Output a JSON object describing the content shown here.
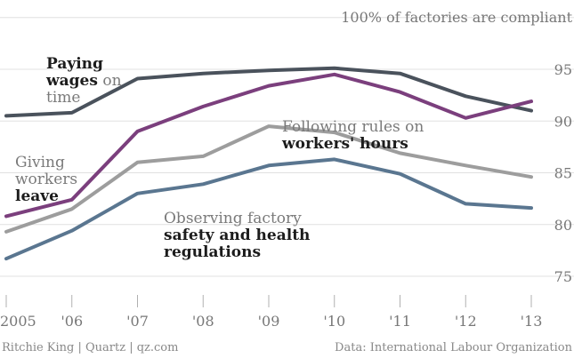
{
  "chart_data": {
    "type": "line",
    "title": "100% of factories are compliant",
    "x": [
      "2005",
      "'06",
      "'07",
      "'08",
      "'09",
      "'10",
      "'11",
      "'12",
      "'13"
    ],
    "y_ticks": [
      "95",
      "90",
      "85",
      "80",
      "75"
    ],
    "ylim": [
      74,
      100
    ],
    "series": [
      {
        "name": "Paying wages on time",
        "label_parts": [
          [
            {
              "t": "Paying",
              "b": true
            }
          ],
          [
            {
              "t": "wages",
              "b": true
            },
            {
              "t": " on",
              "b": false
            }
          ],
          [
            {
              "t": "time",
              "b": false
            }
          ]
        ],
        "color": "#4a525c",
        "values": [
          90.5,
          90.8,
          94.1,
          94.6,
          94.9,
          95.1,
          94.6,
          92.4,
          91.0
        ]
      },
      {
        "name": "Giving workers leave",
        "label_parts": [
          [
            {
              "t": "Giving",
              "b": false
            }
          ],
          [
            {
              "t": "workers",
              "b": false
            }
          ],
          [
            {
              "t": "leave",
              "b": true
            }
          ]
        ],
        "color": "#7b3f7d",
        "values": [
          80.8,
          82.4,
          89.0,
          91.4,
          93.4,
          94.5,
          92.8,
          90.3,
          91.9
        ]
      },
      {
        "name": "Following rules on workers' hours",
        "label_parts": [
          [
            {
              "t": "Following rules on",
              "b": false
            }
          ],
          [
            {
              "t": "workers' hours",
              "b": true
            }
          ]
        ],
        "color": "#9d9d9d",
        "values": [
          79.3,
          81.5,
          86.0,
          86.6,
          89.5,
          88.9,
          86.9,
          85.7,
          84.6
        ]
      },
      {
        "name": "Observing factory safety and health regulations",
        "label_parts": [
          [
            {
              "t": "Observing factory",
              "b": false
            }
          ],
          [
            {
              "t": "safety and health",
              "b": true
            }
          ],
          [
            {
              "t": "regulations",
              "b": true
            }
          ]
        ],
        "color": "#5a7690",
        "values": [
          76.7,
          79.4,
          83.0,
          83.9,
          85.7,
          86.3,
          84.9,
          82.0,
          81.6
        ]
      }
    ],
    "source": "Data: International Labour Organization",
    "credit": "Ritchie King | Quartz | qz.com"
  }
}
